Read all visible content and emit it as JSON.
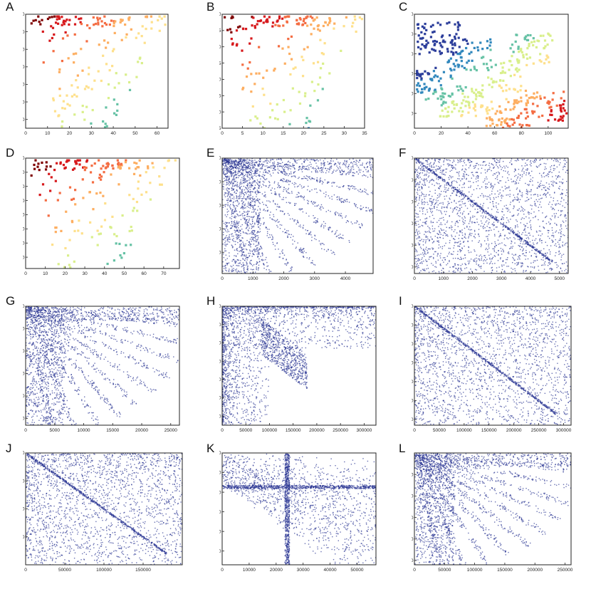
{
  "colors": {
    "frame": "#222222",
    "dense_blue": "#2a3593",
    "jet": [
      "#7f0000",
      "#d7191c",
      "#f46d43",
      "#fdae61",
      "#fee08b",
      "#d9ef8b",
      "#66c2a5",
      "#3288bd",
      "#2c3e9b"
    ]
  },
  "chart_data": [
    {
      "id": "A",
      "type": "scatter",
      "label": "A",
      "xlim": [
        0,
        65
      ],
      "ylim": [
        0,
        65
      ],
      "y_inverted": true,
      "xticks": [
        "0",
        "10",
        "20",
        "30",
        "40",
        "50",
        "60"
      ],
      "yticks": [
        "0",
        "10",
        "20",
        "30",
        "40",
        "50",
        "60"
      ],
      "pattern": "sparse-colored"
    },
    {
      "id": "B",
      "type": "scatter",
      "label": "B",
      "xlim": [
        0,
        35
      ],
      "ylim": [
        0,
        35
      ],
      "y_inverted": true,
      "xticks": [
        "0",
        "5",
        "10",
        "15",
        "20",
        "25",
        "30",
        "35"
      ],
      "yticks": [
        "0",
        "5",
        "10",
        "15",
        "20",
        "25",
        "30",
        "35"
      ],
      "pattern": "sparse-colored"
    },
    {
      "id": "C",
      "type": "scatter",
      "label": "C",
      "xlim": [
        0,
        115
      ],
      "ylim": [
        0,
        115
      ],
      "y_inverted": true,
      "xticks": [
        "0",
        "20",
        "40",
        "60",
        "80",
        "100"
      ],
      "yticks": [
        "0",
        "20",
        "40",
        "60",
        "80",
        "100"
      ],
      "pattern": "clustered-colored"
    },
    {
      "id": "D",
      "type": "scatter",
      "label": "D",
      "xlim": [
        0,
        78
      ],
      "ylim": [
        0,
        78
      ],
      "y_inverted": true,
      "xticks": [
        "0",
        "10",
        "20",
        "30",
        "40",
        "50",
        "60",
        "70"
      ],
      "yticks": [
        "0",
        "10",
        "20",
        "30",
        "40",
        "50",
        "60",
        "70"
      ],
      "pattern": "sparse-colored"
    },
    {
      "id": "E",
      "type": "scatter",
      "label": "E",
      "xlim": [
        0,
        4900
      ],
      "ylim": [
        0,
        4900
      ],
      "y_inverted": true,
      "xticks": [
        "0",
        "1000",
        "2000",
        "3000",
        "4000"
      ],
      "yticks": [
        "0",
        "1000",
        "2000",
        "3000",
        "4000"
      ],
      "pattern": "dense-arcs"
    },
    {
      "id": "F",
      "type": "scatter",
      "label": "F",
      "xlim": [
        0,
        5300
      ],
      "ylim": [
        0,
        5300
      ],
      "y_inverted": true,
      "xticks": [
        "0",
        "1000",
        "2000",
        "3000",
        "4000",
        "5000"
      ],
      "yticks": [
        "0",
        "1000",
        "2000",
        "3000",
        "4000",
        "5000"
      ],
      "pattern": "dense-diagonal"
    },
    {
      "id": "G",
      "type": "scatter",
      "label": "G",
      "xlim": [
        0,
        26500
      ],
      "ylim": [
        0,
        26500
      ],
      "y_inverted": true,
      "xticks": [
        "0",
        "5000",
        "10000",
        "15000",
        "20000",
        "25000"
      ],
      "yticks": [
        "0",
        "5000",
        "10000",
        "15000",
        "20000",
        "25000"
      ],
      "pattern": "dense-arcs"
    },
    {
      "id": "H",
      "type": "scatter",
      "label": "H",
      "xlim": [
        0,
        325000
      ],
      "ylim": [
        0,
        325000
      ],
      "y_inverted": true,
      "xticks": [
        "0",
        "50000",
        "100000",
        "150000",
        "200000",
        "250000",
        "300000"
      ],
      "yticks": [
        "0",
        "50000",
        "100000",
        "150000",
        "200000",
        "250000",
        "300000"
      ],
      "pattern": "dense-edges"
    },
    {
      "id": "I",
      "type": "scatter",
      "label": "I",
      "xlim": [
        0,
        315000
      ],
      "ylim": [
        0,
        315000
      ],
      "y_inverted": true,
      "xticks": [
        "0",
        "50000",
        "100000",
        "150000",
        "200000",
        "250000",
        "300000"
      ],
      "yticks": [
        "0",
        "50000",
        "100000",
        "150000",
        "200000",
        "250000",
        "300000"
      ],
      "pattern": "dense-diagonal"
    },
    {
      "id": "J",
      "type": "scatter",
      "label": "J",
      "xlim": [
        0,
        200000
      ],
      "ylim": [
        0,
        200000
      ],
      "y_inverted": true,
      "xticks": [
        "0",
        "50000",
        "100000",
        "150000"
      ],
      "yticks": [
        "0",
        "50000",
        "100000",
        "150000"
      ],
      "pattern": "dense-diagonal"
    },
    {
      "id": "K",
      "type": "scatter",
      "label": "K",
      "xlim": [
        0,
        57000
      ],
      "ylim": [
        0,
        57000
      ],
      "y_inverted": true,
      "xticks": [
        "0",
        "10000",
        "20000",
        "30000",
        "40000",
        "50000"
      ],
      "yticks": [
        "0",
        "10000",
        "20000",
        "30000",
        "40000",
        "50000"
      ],
      "pattern": "dense-cross"
    },
    {
      "id": "L",
      "type": "scatter",
      "label": "L",
      "xlim": [
        0,
        260000
      ],
      "ylim": [
        0,
        260000
      ],
      "y_inverted": true,
      "xticks": [
        "0",
        "50000",
        "100000",
        "150000",
        "200000",
        "250000"
      ],
      "yticks": [
        "50000",
        "100000",
        "150000",
        "200000",
        "250000"
      ],
      "pattern": "dense-rays"
    }
  ]
}
